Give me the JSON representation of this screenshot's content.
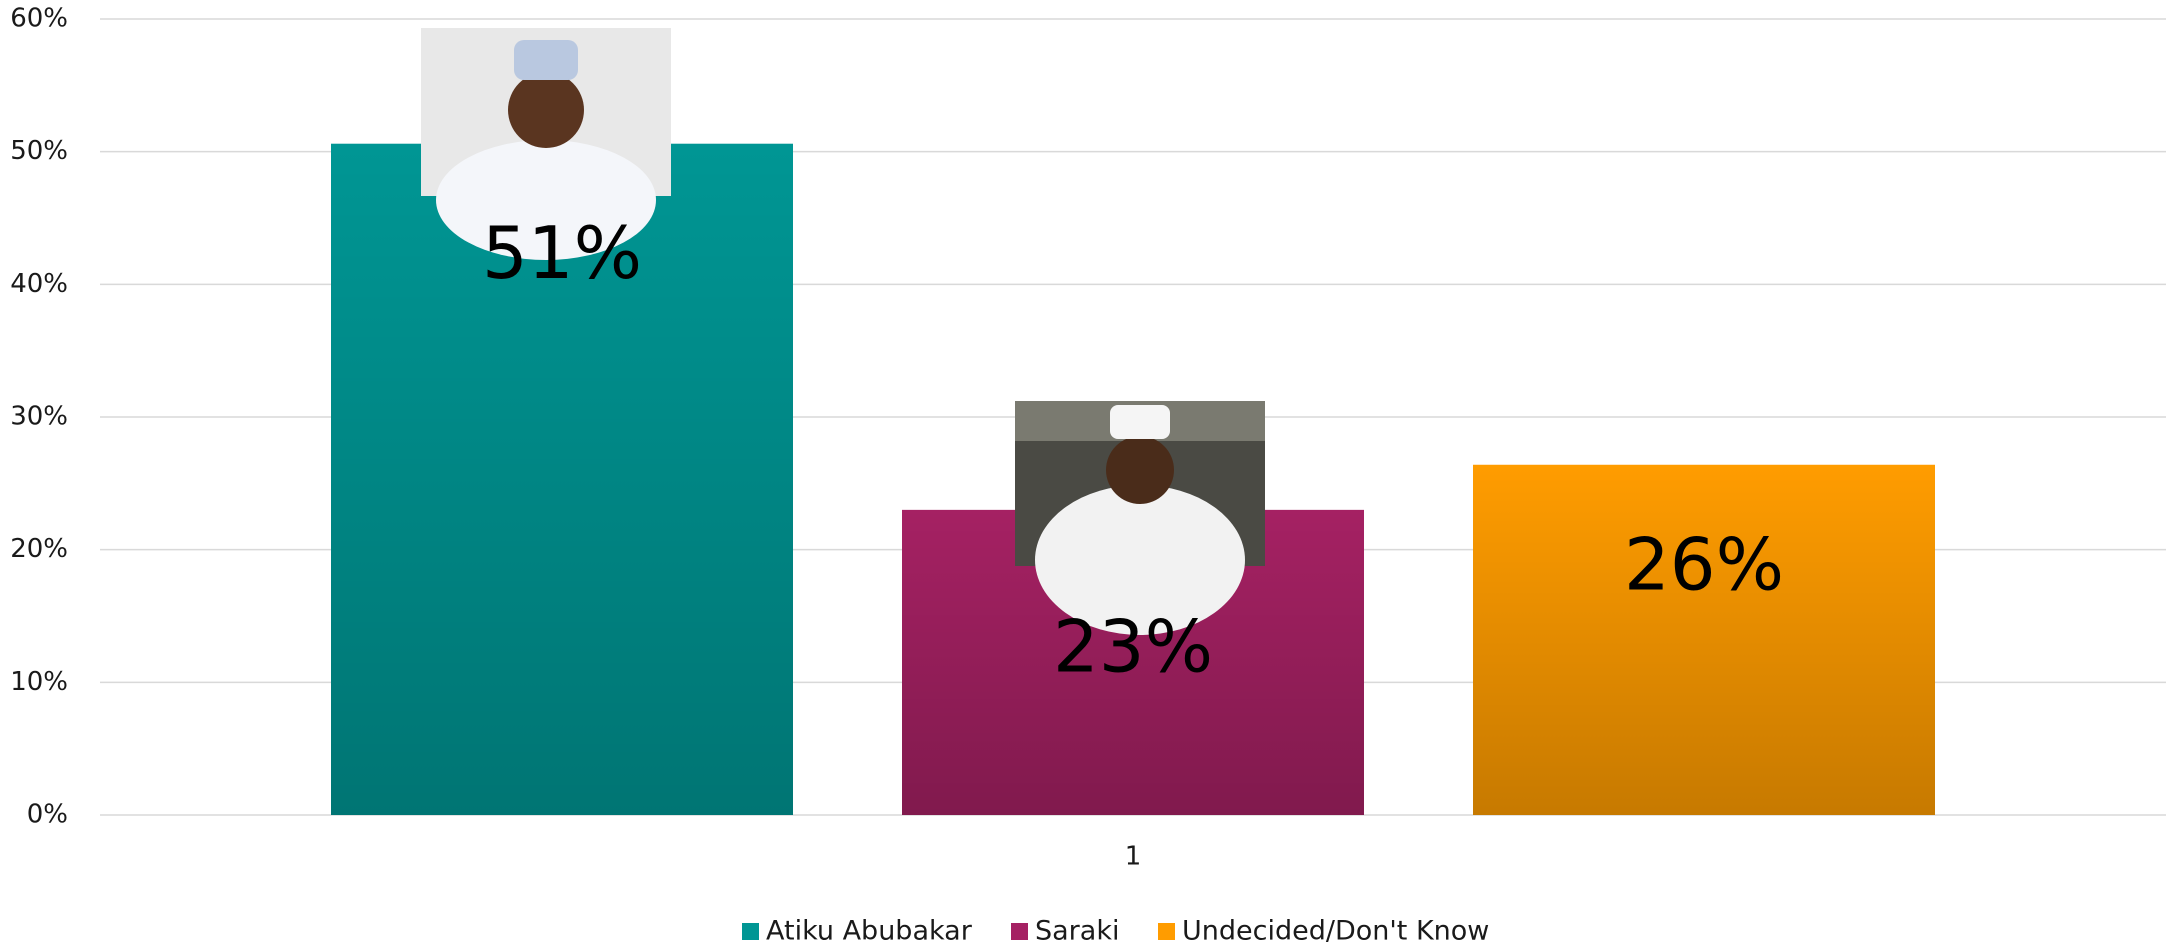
{
  "chart_data": {
    "type": "bar",
    "categories": [
      "1"
    ],
    "series": [
      {
        "name": "Atiku Abubakar",
        "color": "#009694",
        "values": [
          50.6
        ],
        "value_labels": [
          "51%"
        ]
      },
      {
        "name": "Saraki",
        "color": "#a52163",
        "values": [
          23.0
        ],
        "value_labels": [
          "23%"
        ]
      },
      {
        "name": "Undecided/Don't Know",
        "color": "#ff9c00",
        "values": [
          26.4
        ],
        "value_labels": [
          "26%"
        ]
      }
    ],
    "ylim": [
      0,
      60
    ],
    "yticks": [
      {
        "value": 0,
        "label": "0%"
      },
      {
        "value": 10,
        "label": "10%"
      },
      {
        "value": 20,
        "label": "20%"
      },
      {
        "value": 30,
        "label": "30%"
      },
      {
        "value": 40,
        "label": "40%"
      },
      {
        "value": 50,
        "label": "50%"
      },
      {
        "value": 60,
        "label": "60%"
      }
    ],
    "grid": true,
    "legend": "bottom"
  }
}
